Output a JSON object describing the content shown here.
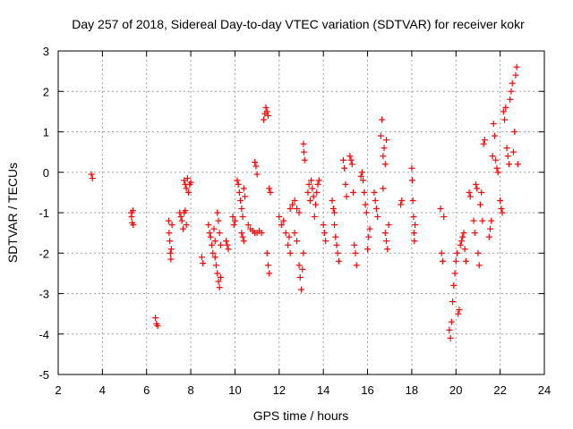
{
  "chart_data": {
    "type": "scatter",
    "title": "Day 257 of 2018, Sidereal Day-to-day VTEC variation (SDTVAR) for receiver kokr",
    "xlabel": "GPS time / hours",
    "ylabel": "SDTVAR / TECUs",
    "xlim": [
      2,
      24
    ],
    "ylim": [
      -5,
      3
    ],
    "xticks": [
      2,
      4,
      6,
      8,
      10,
      12,
      14,
      16,
      18,
      20,
      22,
      24
    ],
    "yticks": [
      -5,
      -4,
      -3,
      -2,
      -1,
      0,
      1,
      2,
      3
    ],
    "grid": true,
    "marker": "+",
    "color": "#ff0000",
    "series": [
      {
        "name": "SDTVAR",
        "points": [
          [
            3.5,
            -0.05
          ],
          [
            3.55,
            -0.15
          ],
          [
            5.3,
            -1.0
          ],
          [
            5.32,
            -1.1
          ],
          [
            5.35,
            -1.25
          ],
          [
            5.38,
            -0.95
          ],
          [
            5.4,
            -1.3
          ],
          [
            6.4,
            -3.6
          ],
          [
            6.45,
            -3.75
          ],
          [
            6.5,
            -3.8
          ],
          [
            7.0,
            -1.2
          ],
          [
            7.02,
            -1.5
          ],
          [
            7.05,
            -1.7
          ],
          [
            7.08,
            -2.0
          ],
          [
            7.1,
            -2.15
          ],
          [
            7.12,
            -1.9
          ],
          [
            7.15,
            -1.3
          ],
          [
            7.5,
            -1.0
          ],
          [
            7.55,
            -1.1
          ],
          [
            7.6,
            -1.2
          ],
          [
            7.65,
            -1.4
          ],
          [
            7.7,
            -1.0
          ],
          [
            7.75,
            -0.95
          ],
          [
            7.8,
            -1.3
          ],
          [
            7.7,
            -0.2
          ],
          [
            7.75,
            -0.3
          ],
          [
            7.8,
            -0.4
          ],
          [
            7.85,
            -0.15
          ],
          [
            7.9,
            -0.5
          ],
          [
            7.95,
            -0.3
          ],
          [
            8.0,
            -0.25
          ],
          [
            8.5,
            -2.1
          ],
          [
            8.55,
            -2.25
          ],
          [
            8.8,
            -1.3
          ],
          [
            8.85,
            -1.5
          ],
          [
            8.9,
            -1.6
          ],
          [
            8.95,
            -1.8
          ],
          [
            9.0,
            -2.0
          ],
          [
            9.05,
            -1.4
          ],
          [
            9.1,
            -1.7
          ],
          [
            9.1,
            -2.1
          ],
          [
            9.15,
            -2.3
          ],
          [
            9.2,
            -2.5
          ],
          [
            9.25,
            -2.7
          ],
          [
            9.3,
            -2.85
          ],
          [
            9.35,
            -2.6
          ],
          [
            9.2,
            -1.0
          ],
          [
            9.25,
            -1.2
          ],
          [
            9.3,
            -1.5
          ],
          [
            9.35,
            -1.8
          ],
          [
            9.6,
            -1.7
          ],
          [
            9.65,
            -1.8
          ],
          [
            9.7,
            -1.9
          ],
          [
            9.9,
            -1.1
          ],
          [
            9.95,
            -1.3
          ],
          [
            10.0,
            -1.2
          ],
          [
            10.1,
            -0.2
          ],
          [
            10.15,
            -0.3
          ],
          [
            10.2,
            -0.5
          ],
          [
            10.25,
            -0.7
          ],
          [
            10.3,
            -0.9
          ],
          [
            10.35,
            -1.1
          ],
          [
            10.4,
            -0.4
          ],
          [
            10.45,
            -0.6
          ],
          [
            10.3,
            -1.5
          ],
          [
            10.35,
            -1.6
          ],
          [
            10.4,
            -1.7
          ],
          [
            10.6,
            -1.3
          ],
          [
            10.7,
            -1.4
          ],
          [
            10.8,
            -1.45
          ],
          [
            10.9,
            -1.5
          ],
          [
            11.0,
            -1.5
          ],
          [
            11.1,
            -1.45
          ],
          [
            11.2,
            -1.5
          ],
          [
            10.9,
            0.25
          ],
          [
            10.95,
            0.15
          ],
          [
            11.0,
            -0.05
          ],
          [
            11.3,
            1.3
          ],
          [
            11.35,
            1.45
          ],
          [
            11.4,
            1.6
          ],
          [
            11.45,
            1.5
          ],
          [
            11.5,
            1.4
          ],
          [
            11.45,
            -2.0
          ],
          [
            11.5,
            -2.3
          ],
          [
            11.55,
            -2.5
          ],
          [
            11.55,
            -0.4
          ],
          [
            11.6,
            -0.5
          ],
          [
            12.0,
            -1.1
          ],
          [
            12.1,
            -1.3
          ],
          [
            12.2,
            -1.2
          ],
          [
            12.3,
            -1.5
          ],
          [
            12.4,
            -1.8
          ],
          [
            12.5,
            -2.0
          ],
          [
            12.45,
            -1.6
          ],
          [
            12.5,
            -0.9
          ],
          [
            12.6,
            -0.8
          ],
          [
            12.7,
            -0.7
          ],
          [
            12.8,
            -0.9
          ],
          [
            12.9,
            -1.0
          ],
          [
            12.7,
            -1.5
          ],
          [
            12.8,
            -1.7
          ],
          [
            12.9,
            -2.3
          ],
          [
            12.95,
            -2.6
          ],
          [
            13.0,
            -2.9
          ],
          [
            13.05,
            -2.4
          ],
          [
            13.1,
            -2.0
          ],
          [
            13.1,
            0.7
          ],
          [
            13.12,
            0.5
          ],
          [
            13.15,
            0.3
          ],
          [
            13.3,
            -0.5
          ],
          [
            13.35,
            -0.3
          ],
          [
            13.4,
            -0.7
          ],
          [
            13.45,
            -0.2
          ],
          [
            13.5,
            -0.4
          ],
          [
            13.55,
            -0.6
          ],
          [
            13.6,
            -1.1
          ],
          [
            13.65,
            -0.8
          ],
          [
            13.7,
            -0.5
          ],
          [
            13.75,
            -0.3
          ],
          [
            13.8,
            -0.2
          ],
          [
            14.0,
            -1.3
          ],
          [
            14.05,
            -1.5
          ],
          [
            14.1,
            -1.7
          ],
          [
            14.5,
            -1.3
          ],
          [
            14.55,
            -1.6
          ],
          [
            14.6,
            -1.8
          ],
          [
            14.65,
            -2.0
          ],
          [
            14.7,
            -2.2
          ],
          [
            14.4,
            -0.7
          ],
          [
            14.45,
            -0.9
          ],
          [
            14.5,
            -1.0
          ],
          [
            14.9,
            0.3
          ],
          [
            14.95,
            0.1
          ],
          [
            15.0,
            -0.3
          ],
          [
            15.05,
            -0.6
          ],
          [
            15.2,
            0.4
          ],
          [
            15.25,
            0.3
          ],
          [
            15.3,
            0.2
          ],
          [
            15.35,
            -0.5
          ],
          [
            15.4,
            -1.8
          ],
          [
            15.45,
            -2.0
          ],
          [
            15.5,
            -2.3
          ],
          [
            15.7,
            -0.1
          ],
          [
            15.75,
            0.0
          ],
          [
            15.8,
            -0.2
          ],
          [
            15.85,
            -0.5
          ],
          [
            15.9,
            -0.8
          ],
          [
            15.95,
            -1.0
          ],
          [
            16.0,
            -1.9
          ],
          [
            16.05,
            -1.6
          ],
          [
            16.1,
            -1.4
          ],
          [
            16.3,
            -0.5
          ],
          [
            16.35,
            -0.7
          ],
          [
            16.4,
            -0.9
          ],
          [
            16.45,
            -1.1
          ],
          [
            16.6,
            0.9
          ],
          [
            16.65,
            1.3
          ],
          [
            16.7,
            0.4
          ],
          [
            16.75,
            0.6
          ],
          [
            16.8,
            0.2
          ],
          [
            16.85,
            0.8
          ],
          [
            16.7,
            -0.4
          ],
          [
            16.8,
            -1.5
          ],
          [
            16.85,
            -1.7
          ],
          [
            16.9,
            -1.9
          ],
          [
            16.95,
            -1.3
          ],
          [
            17.5,
            -0.8
          ],
          [
            17.55,
            -0.7
          ],
          [
            18.0,
            0.1
          ],
          [
            18.02,
            -0.2
          ],
          [
            18.05,
            -0.7
          ],
          [
            18.08,
            -1.1
          ],
          [
            18.1,
            -1.5
          ],
          [
            18.12,
            -1.7
          ],
          [
            18.15,
            -1.3
          ],
          [
            19.3,
            -0.9
          ],
          [
            19.35,
            -2.0
          ],
          [
            19.4,
            -2.2
          ],
          [
            19.45,
            -1.1
          ],
          [
            19.7,
            -3.9
          ],
          [
            19.75,
            -4.1
          ],
          [
            19.8,
            -3.7
          ],
          [
            19.85,
            -3.2
          ],
          [
            19.9,
            -2.8
          ],
          [
            19.95,
            -2.5
          ],
          [
            20.0,
            -2.2
          ],
          [
            20.05,
            -2.0
          ],
          [
            20.1,
            -3.5
          ],
          [
            20.15,
            -3.4
          ],
          [
            20.2,
            -1.8
          ],
          [
            20.25,
            -1.7
          ],
          [
            20.3,
            -1.6
          ],
          [
            20.35,
            -1.5
          ],
          [
            20.4,
            -1.9
          ],
          [
            20.45,
            -2.2
          ],
          [
            20.6,
            -0.5
          ],
          [
            20.65,
            -0.6
          ],
          [
            20.8,
            -1.2
          ],
          [
            20.85,
            -1.5
          ],
          [
            20.9,
            -0.3
          ],
          [
            20.95,
            -0.4
          ],
          [
            21.0,
            -2.0
          ],
          [
            21.05,
            -2.3
          ],
          [
            21.1,
            -0.8
          ],
          [
            21.15,
            -0.5
          ],
          [
            21.2,
            -1.2
          ],
          [
            21.25,
            0.7
          ],
          [
            21.3,
            0.8
          ],
          [
            21.5,
            -1.6
          ],
          [
            21.55,
            -1.4
          ],
          [
            21.6,
            -1.2
          ],
          [
            21.65,
            0.4
          ],
          [
            21.7,
            1.2
          ],
          [
            21.75,
            0.9
          ],
          [
            21.8,
            0.3
          ],
          [
            21.85,
            0.1
          ],
          [
            21.9,
            0.0
          ],
          [
            22.0,
            -0.7
          ],
          [
            22.05,
            -0.9
          ],
          [
            22.1,
            -1.0
          ],
          [
            22.15,
            1.5
          ],
          [
            22.2,
            1.3
          ],
          [
            22.25,
            1.6
          ],
          [
            22.3,
            0.6
          ],
          [
            22.35,
            0.4
          ],
          [
            22.4,
            0.2
          ],
          [
            22.45,
            1.8
          ],
          [
            22.5,
            2.0
          ],
          [
            22.55,
            2.2
          ],
          [
            22.6,
            0.5
          ],
          [
            22.65,
            1.0
          ],
          [
            22.7,
            2.4
          ],
          [
            22.75,
            2.6
          ],
          [
            22.8,
            0.2
          ]
        ]
      }
    ]
  }
}
